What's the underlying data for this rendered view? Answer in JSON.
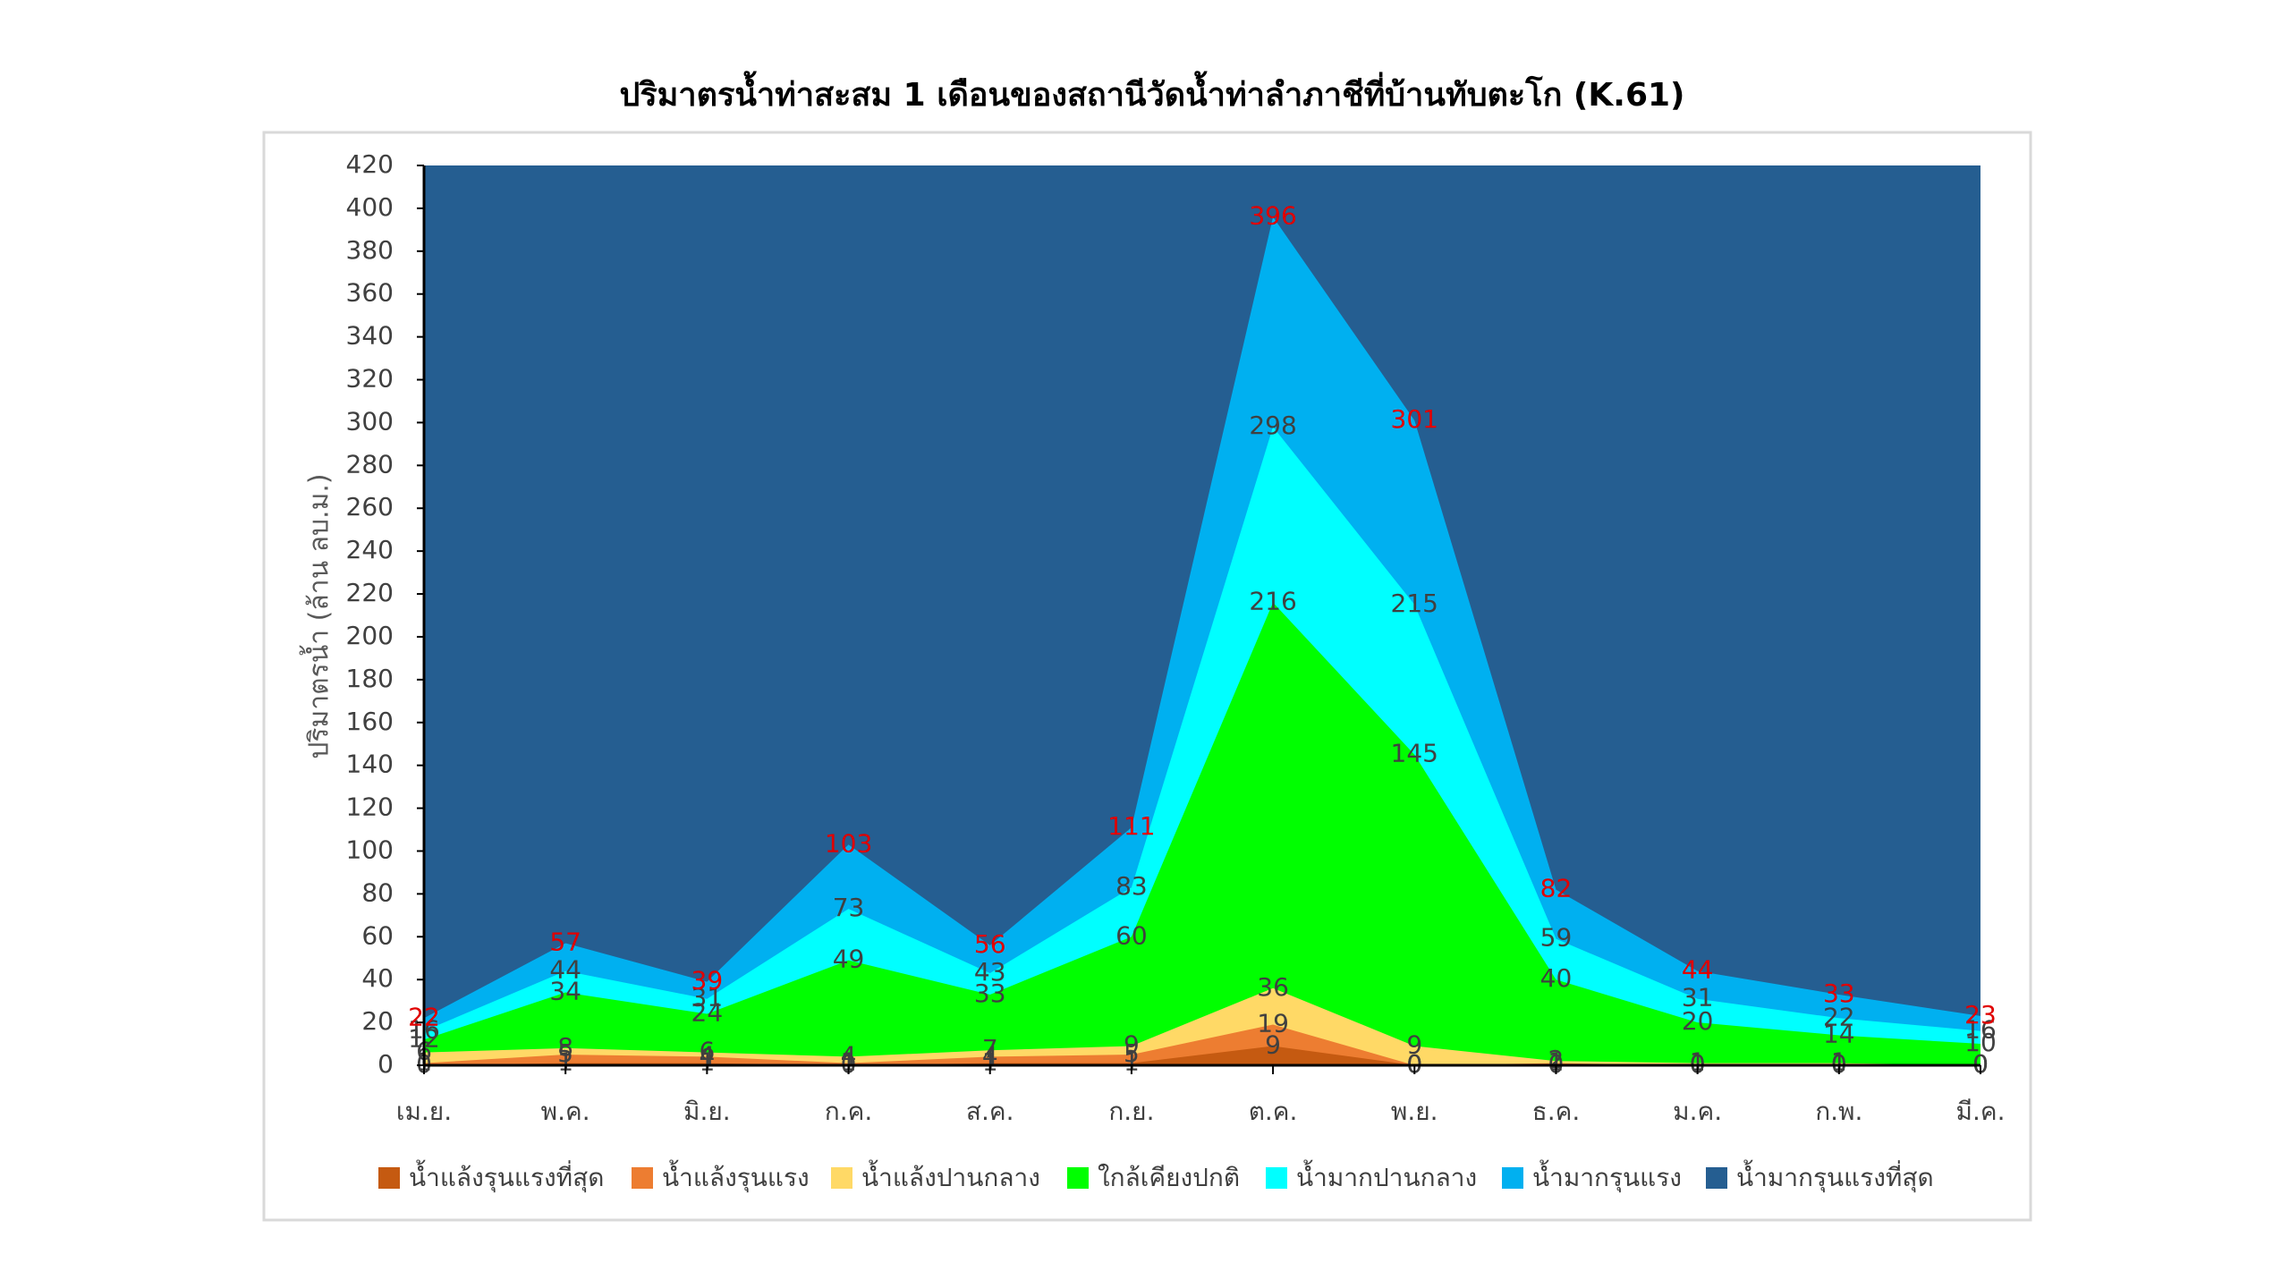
{
  "chart_data": {
    "type": "area",
    "title": "ปริมาตรน้ำท่าสะสม 1 เดือนของสถานีวัดน้ำท่าลำภาชีที่บ้านทับตะโก (K.61)",
    "y_label": "ปริมาตรน้ำ (ล้าน ลบ.ม.)",
    "categories": [
      "เม.ย.",
      "พ.ค.",
      "มิ.ย.",
      "ก.ค.",
      "ส.ค.",
      "ก.ย.",
      "ต.ค.",
      "พ.ย.",
      "ธ.ค.",
      "ม.ค.",
      "ก.พ.",
      "มี.ค."
    ],
    "ylim": [
      0,
      420
    ],
    "yticks": [
      0,
      20,
      40,
      60,
      80,
      100,
      120,
      140,
      160,
      180,
      200,
      220,
      240,
      260,
      280,
      300,
      320,
      340,
      360,
      380,
      400,
      420
    ],
    "series": [
      {
        "name": "น้ำแล้งรุนแรงที่สุด",
        "color": "#c55a11",
        "label_color": "#404040",
        "values": [
          0,
          1,
          1,
          0,
          1,
          1,
          9,
          0,
          0,
          0,
          0,
          0
        ]
      },
      {
        "name": "น้ำแล้งรุนแรง",
        "color": "#ed7d31",
        "label_color": "#404040",
        "values": [
          1,
          5,
          4,
          1,
          4,
          5,
          19,
          0,
          1,
          0,
          0,
          0
        ]
      },
      {
        "name": "น้ำแล้งปานกลาง",
        "color": "#ffd966",
        "label_color": "#404040",
        "values": [
          6,
          8,
          6,
          4,
          7,
          9,
          36,
          9,
          2,
          1,
          1,
          0
        ]
      },
      {
        "name": "ใกล้เคียงปกติ",
        "color": "#00ff00",
        "label_color": "#404040",
        "values": [
          12,
          34,
          24,
          49,
          33,
          60,
          216,
          145,
          40,
          20,
          14,
          10
        ]
      },
      {
        "name": "น้ำมากปานกลาง",
        "color": "#00ffff",
        "label_color": "#404040",
        "values": [
          16,
          44,
          31,
          73,
          43,
          83,
          298,
          215,
          59,
          31,
          22,
          16
        ]
      },
      {
        "name": "น้ำมากรุนแรง",
        "color": "#00b0f0",
        "label_color": "#e00000",
        "values": [
          22,
          57,
          39,
          103,
          56,
          111,
          396,
          301,
          82,
          44,
          33,
          23
        ]
      },
      {
        "name": "น้ำมากรุนแรงที่สุด",
        "color": "#255e91"
      }
    ]
  }
}
